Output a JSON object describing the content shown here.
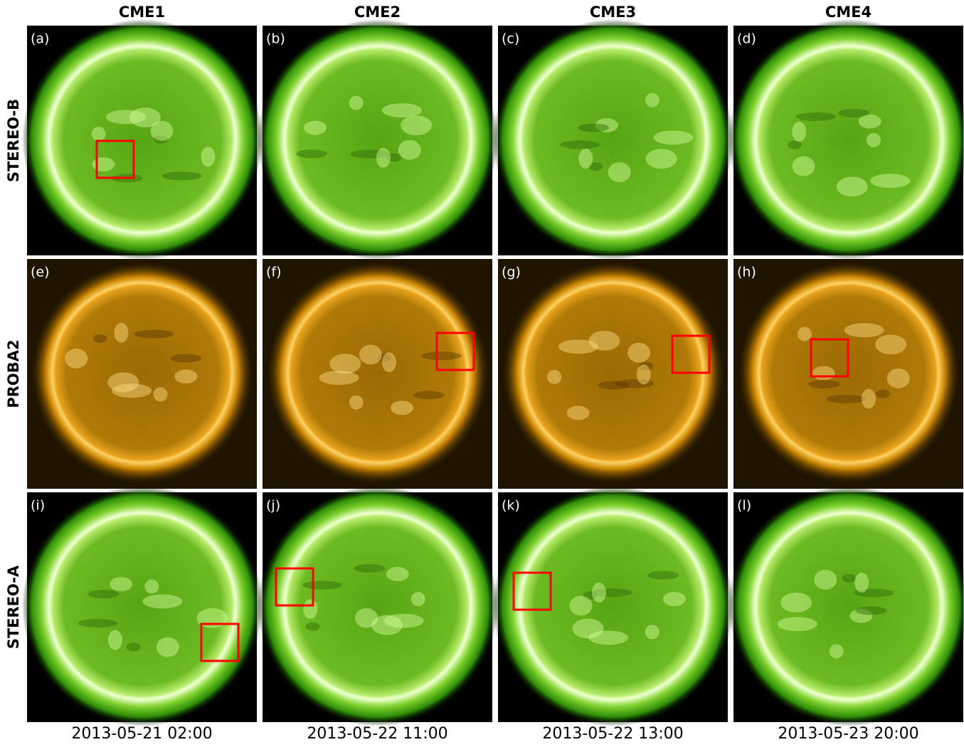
{
  "columns": [
    {
      "title": "CME1",
      "date": "2013-05-21 02:00"
    },
    {
      "title": "CME2",
      "date": "2013-05-22 11:00"
    },
    {
      "title": "CME3",
      "date": "2013-05-22 13:00"
    },
    {
      "title": "CME4",
      "date": "2013-05-23 20:00"
    }
  ],
  "rows": [
    "STEREO-B",
    "PROBA2",
    "STEREO-A"
  ],
  "panels": [
    "(a)",
    "(b)",
    "(c)",
    "(d)",
    "(e)",
    "(f)",
    "(g)",
    "(h)",
    "(i)",
    "(j)",
    "(k)",
    "(l)"
  ]
}
